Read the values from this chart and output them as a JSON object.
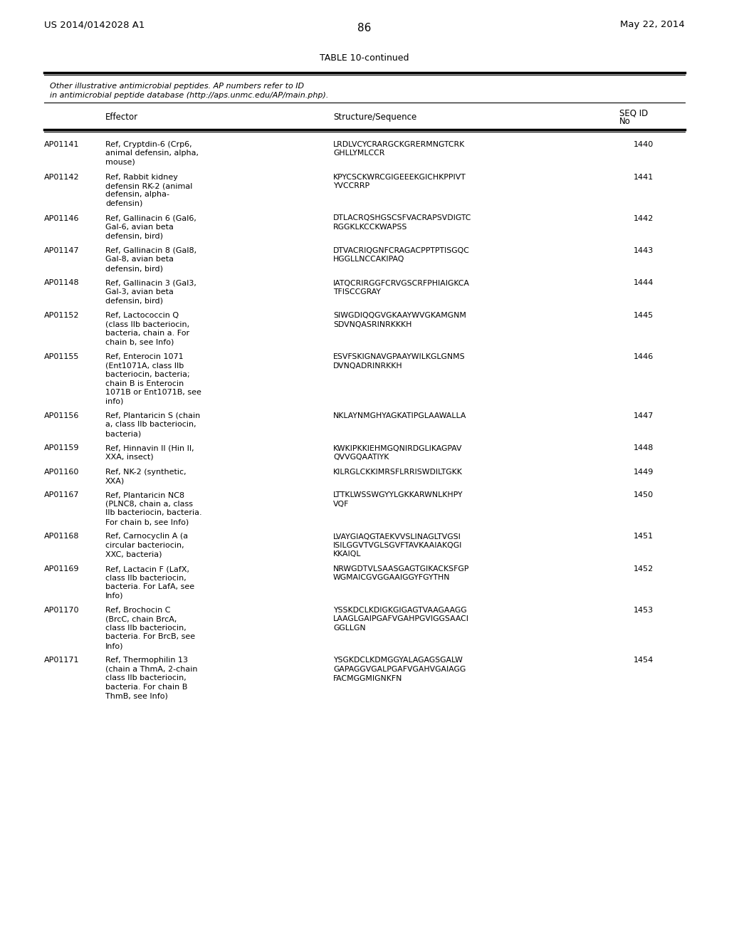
{
  "page_number": "86",
  "patent_left": "US 2014/0142028 A1",
  "patent_right": "May 22, 2014",
  "table_title": "TABLE 10-continued",
  "table_subtitle1": "Other illustrative antimicrobial peptides. AP numbers refer to ID",
  "table_subtitle2": "in antimicrobial peptide database (http://aps.unmc.edu/AP/main.php).",
  "col_header_effector": "Effector",
  "col_header_sequence": "Structure/Sequence",
  "col_header_seqid1": "SEQ ID",
  "col_header_seqid2": "No",
  "rows": [
    {
      "ap": "AP01141",
      "effector": "Ref, Cryptdin-6 (Crp6,\nanimal defensin, alpha,\nmouse)",
      "sequence": "LRDLVCYCRARGCKGRERMNGTCRK\nGHLLYMLCCR",
      "seqid": "1440"
    },
    {
      "ap": "AP01142",
      "effector": "Ref, Rabbit kidney\ndefensin RK-2 (animal\ndefensin, alpha-\ndefensin)",
      "sequence": "KPYCSCKWRCGIGEEEKGICHKPPIVT\nYVCCRRP",
      "seqid": "1441"
    },
    {
      "ap": "AP01146",
      "effector": "Ref, Gallinacin 6 (Gal6,\nGal-6, avian beta\ndefensin, bird)",
      "sequence": "DTLACRQSHGSCSFVACRAPSVDIGTC\nRGGKLKCCKWAPSS",
      "seqid": "1442"
    },
    {
      "ap": "AP01147",
      "effector": "Ref, Gallinacin 8 (Gal8,\nGal-8, avian beta\ndefensin, bird)",
      "sequence": "DTVACRIQGNFCRAGACPPTPTISGQC\nHGGLLNCCAKIPAQ",
      "seqid": "1443"
    },
    {
      "ap": "AP01148",
      "effector": "Ref, Gallinacin 3 (Gal3,\nGal-3, avian beta\ndefensin, bird)",
      "sequence": "IATQCRIRGGFCRVGSCRFPHIAIGKCA\nTFISCCGRAY",
      "seqid": "1444"
    },
    {
      "ap": "AP01152",
      "effector": "Ref, Lactococcin Q\n(class IIb bacteriocin,\nbacteria, chain a. For\nchain b, see Info)",
      "sequence": "SIWGDIQQGVGKAAYWVGKAMGNM\nSDVNQASRINRKKKH",
      "seqid": "1445"
    },
    {
      "ap": "AP01155",
      "effector": "Ref, Enterocin 1071\n(Ent1071A, class IIb\nbacteriocin, bacteria;\nchain B is Enterocin\n1071B or Ent1071B, see\ninfo)",
      "sequence": "ESVFSKIGNAVGPAAYWILKGLGNMS\nDVNQADRINRKKH",
      "seqid": "1446"
    },
    {
      "ap": "AP01156",
      "effector": "Ref, Plantaricin S (chain\na, class IIb bacteriocin,\nbacteria)",
      "sequence": "NKLAYNMGHYAGKATIPGLAAWALLA",
      "seqid": "1447"
    },
    {
      "ap": "AP01159",
      "effector": "Ref, Hinnavin II (Hin II,\nXXA, insect)",
      "sequence": "KWKIPKKIEHMGQNIRDGLIKAGPAV\nQVVGQAATIYK",
      "seqid": "1448"
    },
    {
      "ap": "AP01160",
      "effector": "Ref, NK-2 (synthetic,\nXXA)",
      "sequence": "KILRGLCKKIMRSFLRRISWDILTGKK",
      "seqid": "1449"
    },
    {
      "ap": "AP01167",
      "effector": "Ref, Plantaricin NC8\n(PLNC8, chain a, class\nIIb bacteriocin, bacteria.\nFor chain b, see Info)",
      "sequence": "LTTKLWSSWGYYLGKKARWNLKHPY\nVQF",
      "seqid": "1450"
    },
    {
      "ap": "AP01168",
      "effector": "Ref, Carnocyclin A (a\ncircular bacteriocin,\nXXC, bacteria)",
      "sequence": "LVAYGIAQGTAEKVVSLINAGLTVGSI\nISILGGVTVGLSGVFTAVKAAIAKQGI\nKKAIQL",
      "seqid": "1451"
    },
    {
      "ap": "AP01169",
      "effector": "Ref, Lactacin F (LafX,\nclass IIb bacteriocin,\nbacteria. For LafA, see\nInfo)",
      "sequence": "NRWGDTVLSAASGAGTGIKACKSFGP\nWGMAICGVGGAAIGGYFGYTHN",
      "seqid": "1452"
    },
    {
      "ap": "AP01170",
      "effector": "Ref, Brochocin C\n(BrcC, chain BrcA,\nclass IIb bacteriocin,\nbacteria. For BrcB, see\nInfo)",
      "sequence": "YSSKDCLKDIGKGIGAGTVAAGAAGG\nLAAGLGAIPGAFVGAHPGVIGGSAACI\nGGLLGN",
      "seqid": "1453"
    },
    {
      "ap": "AP01171",
      "effector": "Ref, Thermophilin 13\n(chain a ThmA, 2-chain\nclass IIb bacteriocin,\nbacteria. For chain B\nThmB, see Info)",
      "sequence": "YSGKDCLKDMGGYALAGAGSGALW\nGAPAGGVGALPGAFVGAHVGAIAGG\nFACMGGMIGNKFN",
      "seqid": "1454"
    }
  ]
}
